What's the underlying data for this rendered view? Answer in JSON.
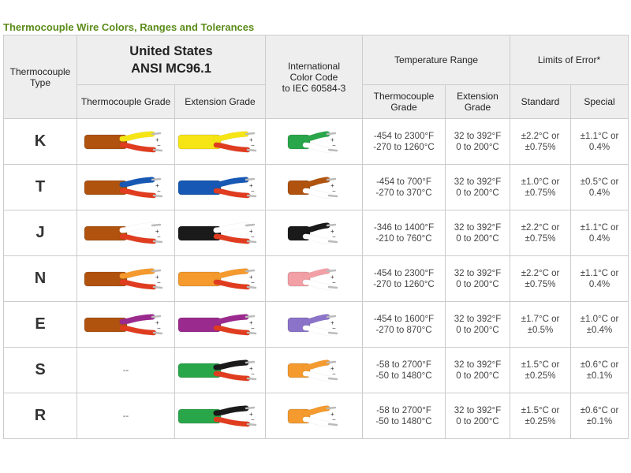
{
  "title": "Thermocouple Wire Colors, Ranges and Tolerances",
  "headers": {
    "type": "Thermocouple Type",
    "us_line1": "United States",
    "us_line2": "ANSI MC96.1",
    "intl_line1": "International Color Code",
    "intl_line2": "to IEC 60584-3",
    "temp_range": "Temperature Range",
    "limits": "Limits of Error*",
    "tc_grade": "Thermocouple Grade",
    "ext_grade": "Extension Grade",
    "tc_grade_temp": "Thermocouple Grade",
    "ext_grade_temp": "Extension Grade",
    "standard": "Standard",
    "special": "Special"
  },
  "rows": [
    {
      "type": "K",
      "tc": {
        "jacket": "#b0530f",
        "pos": "#f6e514",
        "neg": "#e03c1f"
      },
      "ext": {
        "jacket": "#f6e514",
        "pos": "#f6e514",
        "neg": "#e03c1f"
      },
      "intl": {
        "jacket": "#2aa64a",
        "pos": "#2aa64a",
        "neg": "#ffffff"
      },
      "tc_range_1": "-454 to 2300°F",
      "tc_range_2": "-270 to 1260°C",
      "ext_range_1": "32 to 392°F",
      "ext_range_2": "0 to 200°C",
      "std_1": "±2.2°C or",
      "std_2": "±0.75%",
      "spc_1": "±1.1°C or",
      "spc_2": "0.4%"
    },
    {
      "type": "T",
      "tc": {
        "jacket": "#b0530f",
        "pos": "#1658b4",
        "neg": "#e03c1f"
      },
      "ext": {
        "jacket": "#1658b4",
        "pos": "#1658b4",
        "neg": "#e03c1f"
      },
      "intl": {
        "jacket": "#b0530f",
        "pos": "#b0530f",
        "neg": "#ffffff"
      },
      "tc_range_1": "-454 to 700°F",
      "tc_range_2": "-270 to 370°C",
      "ext_range_1": "32 to 392°F",
      "ext_range_2": "0 to 200°C",
      "std_1": "±1.0°C or",
      "std_2": "±0.75%",
      "spc_1": "±0.5°C or",
      "spc_2": "0.4%"
    },
    {
      "type": "J",
      "tc": {
        "jacket": "#b0530f",
        "pos": "#ffffff",
        "neg": "#e03c1f"
      },
      "ext": {
        "jacket": "#1a1a1a",
        "pos": "#ffffff",
        "neg": "#e03c1f"
      },
      "intl": {
        "jacket": "#1a1a1a",
        "pos": "#1a1a1a",
        "neg": "#ffffff"
      },
      "tc_range_1": "-346 to 1400°F",
      "tc_range_2": "-210 to 760°C",
      "ext_range_1": "32 to 392°F",
      "ext_range_2": "0 to 200°C",
      "std_1": "±2.2°C or",
      "std_2": "±0.75%",
      "spc_1": "±1.1°C or",
      "spc_2": "0.4%"
    },
    {
      "type": "N",
      "tc": {
        "jacket": "#b0530f",
        "pos": "#f49a2e",
        "neg": "#e03c1f"
      },
      "ext": {
        "jacket": "#f49a2e",
        "pos": "#f49a2e",
        "neg": "#e03c1f"
      },
      "intl": {
        "jacket": "#f2a0a6",
        "pos": "#f2a0a6",
        "neg": "#ffffff"
      },
      "tc_range_1": "-454 to 2300°F",
      "tc_range_2": "-270 to 1260°C",
      "ext_range_1": "32 to 392°F",
      "ext_range_2": "0 to 200°C",
      "std_1": "±2.2°C or",
      "std_2": "±0.75%",
      "spc_1": "±1.1°C or",
      "spc_2": "0.4%"
    },
    {
      "type": "E",
      "tc": {
        "jacket": "#b0530f",
        "pos": "#9b2a8e",
        "neg": "#e03c1f"
      },
      "ext": {
        "jacket": "#9b2a8e",
        "pos": "#9b2a8e",
        "neg": "#e03c1f"
      },
      "intl": {
        "jacket": "#8a73c8",
        "pos": "#8a73c8",
        "neg": "#ffffff"
      },
      "tc_range_1": "-454 to 1600°F",
      "tc_range_2": "-270 to 870°C",
      "ext_range_1": "32 to 392°F",
      "ext_range_2": "0 to 200°C",
      "std_1": "±1.7°C or",
      "std_2": "±0.5%",
      "spc_1": "±1.0°C or",
      "spc_2": "±0.4%"
    },
    {
      "type": "S",
      "tc": null,
      "tc_text": "--",
      "ext": {
        "jacket": "#2aa64a",
        "pos": "#1a1a1a",
        "neg": "#e03c1f"
      },
      "intl": {
        "jacket": "#f49a2e",
        "pos": "#f49a2e",
        "neg": "#ffffff"
      },
      "tc_range_1": "-58 to 2700°F",
      "tc_range_2": "-50 to 1480°C",
      "ext_range_1": "32 to 392°F",
      "ext_range_2": "0 to 200°C",
      "std_1": "±1.5°C or",
      "std_2": "±0.25%",
      "spc_1": "±0.6°C or",
      "spc_2": "±0.1%"
    },
    {
      "type": "R",
      "tc": null,
      "tc_text": "--",
      "ext": {
        "jacket": "#2aa64a",
        "pos": "#1a1a1a",
        "neg": "#e03c1f"
      },
      "intl": {
        "jacket": "#f49a2e",
        "pos": "#f49a2e",
        "neg": "#ffffff"
      },
      "tc_range_1": "-58 to 2700°F",
      "tc_range_2": "-50 to 1480°C",
      "ext_range_1": "32 to 392°F",
      "ext_range_2": "0 to 200°C",
      "std_1": "±1.5°C or",
      "std_2": "±0.25%",
      "spc_1": "±0.6°C or",
      "spc_2": "±0.1%"
    }
  ]
}
